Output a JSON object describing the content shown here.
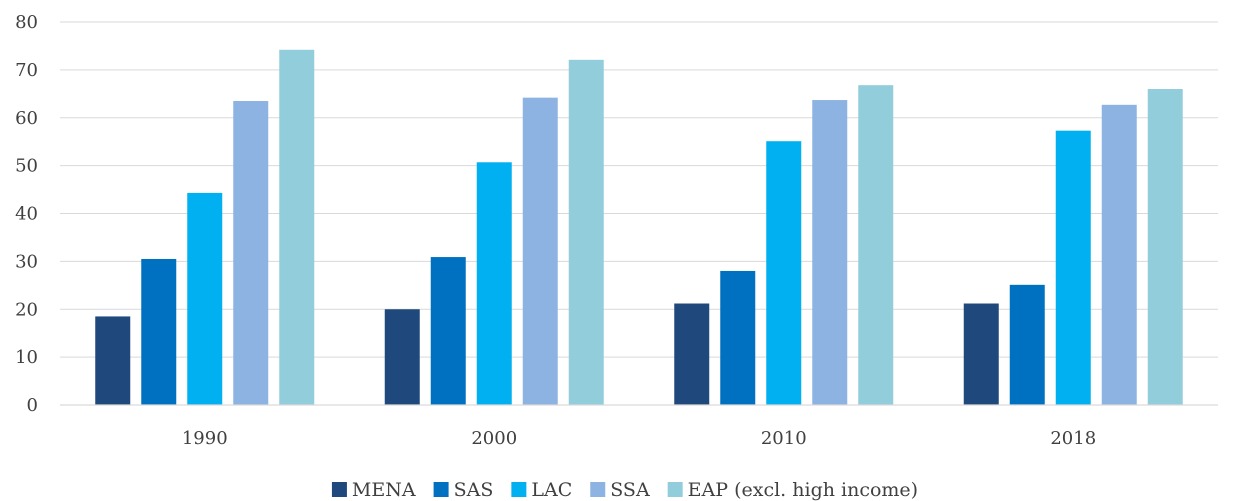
{
  "chart_data": {
    "type": "bar",
    "title": "",
    "xlabel": "",
    "ylabel": "",
    "categories": [
      "1990",
      "2000",
      "2010",
      "2018"
    ],
    "ylim": [
      0,
      80
    ],
    "yticks": [
      0,
      10,
      20,
      30,
      40,
      50,
      60,
      70,
      80
    ],
    "grid": true,
    "legend_position": "bottom",
    "series": [
      {
        "name": "MENA",
        "color": "#1f497d",
        "values": [
          18.5,
          20.0,
          21.2,
          21.2
        ]
      },
      {
        "name": "SAS",
        "color": "#0070c0",
        "values": [
          30.5,
          30.9,
          28.0,
          25.1
        ]
      },
      {
        "name": "LAC",
        "color": "#00b0f0",
        "values": [
          44.3,
          50.7,
          55.1,
          57.3
        ]
      },
      {
        "name": "SSA",
        "color": "#8db3e2",
        "values": [
          63.5,
          64.2,
          63.7,
          62.7
        ]
      },
      {
        "name": "EAP (excl. high income)",
        "color": "#92cddc",
        "values": [
          74.2,
          72.1,
          66.8,
          66.0
        ]
      }
    ]
  }
}
